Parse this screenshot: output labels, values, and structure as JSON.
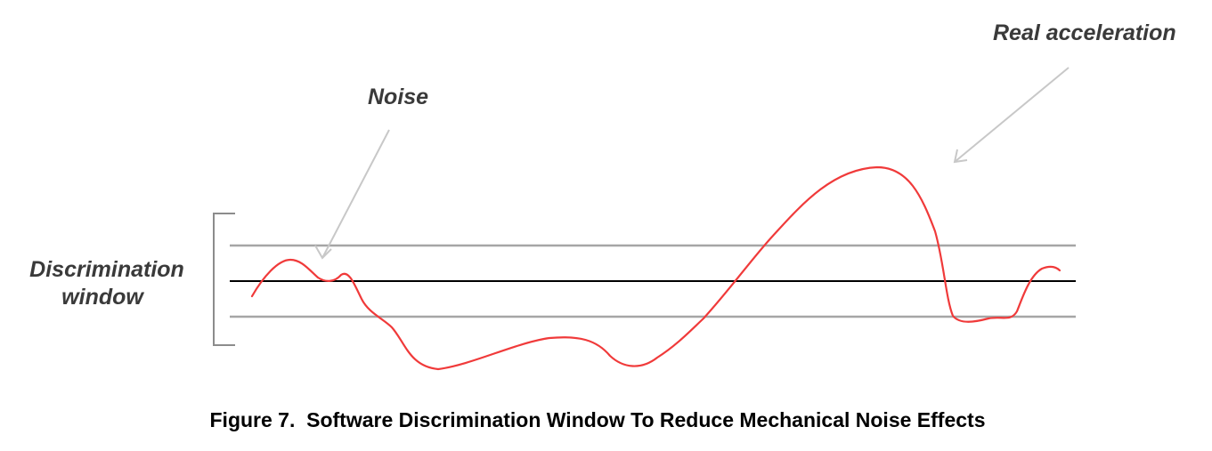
{
  "labels": {
    "real_acceleration": "Real acceleration",
    "noise": "Noise",
    "discrimination_line1": "Discrimination",
    "discrimination_line2": "window"
  },
  "caption": "Figure 7.  Software Discrimination Window To Reduce Mechanical Noise Effects",
  "colors": {
    "signal": "#f03a3a",
    "threshold": "#a6a6a6",
    "baseline": "#000000",
    "arrow": "#c8c8c8",
    "bracket": "#8c8c8c",
    "text": "#3a3a3a"
  }
}
